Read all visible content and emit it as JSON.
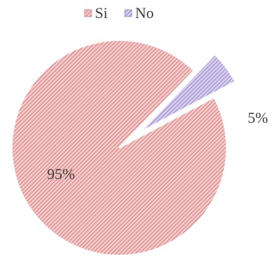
{
  "chart_data": {
    "type": "pie",
    "legend": {
      "position": "top"
    },
    "slices": [
      {
        "name": "Si",
        "value": 95,
        "label": "95%",
        "color": "#f0a7a7",
        "stroke": "#c05a5a",
        "exploded": false
      },
      {
        "name": "No",
        "value": 5,
        "label": "5%",
        "color": "#b7a9d9",
        "stroke": "#7a66b3",
        "exploded": true
      }
    ]
  }
}
